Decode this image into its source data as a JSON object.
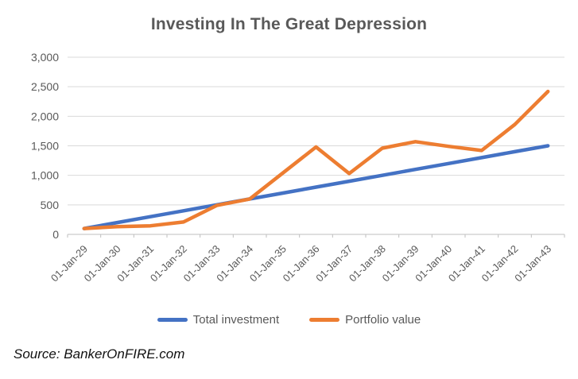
{
  "title": {
    "text": "Investing In The Great Depression",
    "color": "#595959"
  },
  "source": {
    "text": "Source: BankerOnFIRE.com"
  },
  "legend": [
    {
      "label": "Total investment",
      "color": "#4472C4"
    },
    {
      "label": "Portfolio value",
      "color": "#ED7D31"
    }
  ],
  "colors": {
    "grid": "#D9D9D9",
    "axis": "#BFBFBF",
    "tick_text": "#595959",
    "background": "#FFFFFF"
  },
  "chart_data": {
    "type": "line",
    "title": "Investing In The Great Depression",
    "categories": [
      "01-Jan-29",
      "01-Jan-30",
      "01-Jan-31",
      "01-Jan-32",
      "01-Jan-33",
      "01-Jan-34",
      "01-Jan-35",
      "01-Jan-36",
      "01-Jan-37",
      "01-Jan-38",
      "01-Jan-39",
      "01-Jan-40",
      "01-Jan-41",
      "01-Jan-42",
      "01-Jan-43"
    ],
    "series": [
      {
        "name": "Total investment",
        "color": "#4472C4",
        "values": [
          100,
          200,
          300,
          400,
          500,
          600,
          700,
          800,
          900,
          1000,
          1100,
          1200,
          1300,
          1400,
          1500
        ]
      },
      {
        "name": "Portfolio value",
        "color": "#ED7D31",
        "values": [
          100,
          130,
          145,
          210,
          490,
          600,
          1040,
          1480,
          1030,
          1460,
          1570,
          1490,
          1420,
          1860,
          2420
        ]
      }
    ],
    "xlabel": "",
    "ylabel": "",
    "ylim": [
      0,
      3000
    ],
    "ytick_step": 500,
    "yticklabels": [
      "0",
      "500",
      "1,000",
      "1,500",
      "2,000",
      "2,500",
      "3,000"
    ],
    "x_label_rotation": -45,
    "grid": true,
    "legend_position": "bottom"
  }
}
